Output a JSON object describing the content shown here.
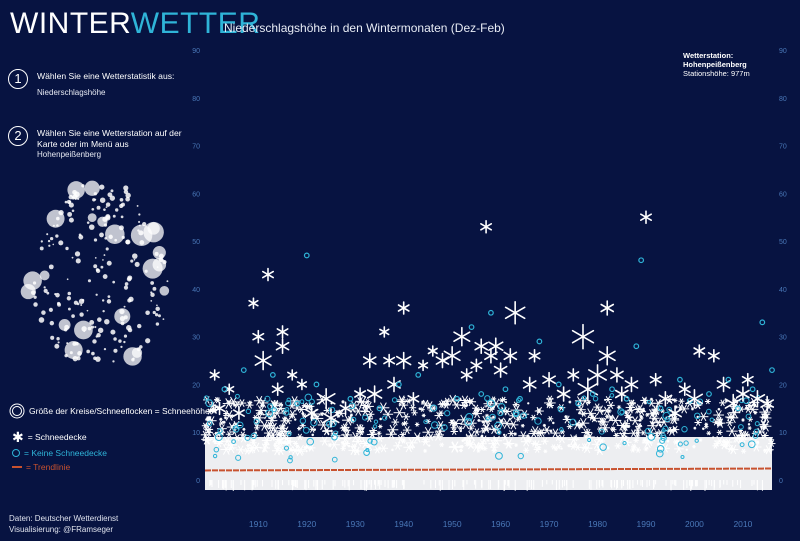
{
  "header": {
    "logo_part1": "WINTER",
    "logo_part2": "WETTER",
    "subtitle": "Niederschlagshöhe in den Wintermonaten (Dez-Feb)"
  },
  "step1": {
    "num": "1",
    "text": "Wählen Sie eine Wetterstatistik aus:",
    "value": "Niederschlagshöhe"
  },
  "step2": {
    "num": "2",
    "text": "Wählen Sie eine Wetterstation auf der Karte oder im Menü aus",
    "value": "Hohenpeißenberg"
  },
  "station": {
    "heading": "Wetterstation:",
    "name": "Hohenpeißenberg",
    "altitude": "Stationshöhe: 977m"
  },
  "legend": {
    "size": "Größe der Kreise/Schneeflocken = Schneehöhe",
    "snow": "= Schneedecke",
    "no_snow": "= Keine Schneedecke",
    "trend": "= Trendlinie"
  },
  "credits": {
    "line1": "Daten: Deutscher Wetterdienst",
    "line2": "Visualisierung: @FRamseger"
  },
  "colors": {
    "background": "#071341",
    "accent": "#2fb4d8",
    "snow": "#ffffff",
    "trend": "#c8522f",
    "axis": "#4a78b8"
  },
  "chart_data": {
    "type": "scatter",
    "title": "Niederschlagshöhe in den Wintermonaten (Dez-Feb)",
    "xlim": [
      1899,
      2016
    ],
    "ylim": [
      0,
      90
    ],
    "x_ticks": [
      1910,
      1920,
      1930,
      1940,
      1950,
      1960,
      1970,
      1980,
      1990,
      2000,
      2010
    ],
    "y_ticks": [
      0,
      10,
      20,
      30,
      40,
      50,
      60,
      70,
      80,
      90
    ],
    "trend_line": {
      "x": [
        1899,
        2016
      ],
      "y": [
        2.0,
        2.4
      ]
    },
    "series": [
      {
        "marker": "snowflake",
        "points": [
          {
            "x": 1901,
            "y": 22,
            "s": 5
          },
          {
            "x": 1902,
            "y": 15,
            "s": 6
          },
          {
            "x": 1904,
            "y": 19,
            "s": 5
          },
          {
            "x": 1906,
            "y": 14,
            "s": 6
          },
          {
            "x": 1909,
            "y": 37,
            "s": 5
          },
          {
            "x": 1910,
            "y": 30,
            "s": 6
          },
          {
            "x": 1911,
            "y": 25,
            "s": 9
          },
          {
            "x": 1912,
            "y": 43,
            "s": 6
          },
          {
            "x": 1914,
            "y": 19,
            "s": 6
          },
          {
            "x": 1915,
            "y": 31,
            "s": 6
          },
          {
            "x": 1915,
            "y": 28,
            "s": 7
          },
          {
            "x": 1917,
            "y": 22,
            "s": 5
          },
          {
            "x": 1919,
            "y": 20,
            "s": 5
          },
          {
            "x": 1921,
            "y": 14,
            "s": 7
          },
          {
            "x": 1924,
            "y": 17,
            "s": 10
          },
          {
            "x": 1925,
            "y": 13,
            "s": 9
          },
          {
            "x": 1928,
            "y": 15,
            "s": 6
          },
          {
            "x": 1931,
            "y": 18,
            "s": 6
          },
          {
            "x": 1933,
            "y": 25,
            "s": 7
          },
          {
            "x": 1934,
            "y": 18,
            "s": 8
          },
          {
            "x": 1936,
            "y": 31,
            "s": 5
          },
          {
            "x": 1937,
            "y": 25,
            "s": 6
          },
          {
            "x": 1938,
            "y": 20,
            "s": 7
          },
          {
            "x": 1940,
            "y": 25,
            "s": 8
          },
          {
            "x": 1940,
            "y": 36,
            "s": 6
          },
          {
            "x": 1942,
            "y": 17,
            "s": 6
          },
          {
            "x": 1944,
            "y": 24,
            "s": 5
          },
          {
            "x": 1946,
            "y": 27,
            "s": 5
          },
          {
            "x": 1948,
            "y": 25,
            "s": 7
          },
          {
            "x": 1950,
            "y": 26,
            "s": 9
          },
          {
            "x": 1952,
            "y": 30,
            "s": 9
          },
          {
            "x": 1953,
            "y": 22,
            "s": 6
          },
          {
            "x": 1955,
            "y": 24,
            "s": 6
          },
          {
            "x": 1956,
            "y": 28,
            "s": 7
          },
          {
            "x": 1957,
            "y": 53,
            "s": 6
          },
          {
            "x": 1958,
            "y": 26,
            "s": 7
          },
          {
            "x": 1959,
            "y": 28,
            "s": 8
          },
          {
            "x": 1960,
            "y": 23,
            "s": 7
          },
          {
            "x": 1962,
            "y": 26,
            "s": 7
          },
          {
            "x": 1963,
            "y": 35,
            "s": 11
          },
          {
            "x": 1966,
            "y": 20,
            "s": 7
          },
          {
            "x": 1967,
            "y": 26,
            "s": 6
          },
          {
            "x": 1970,
            "y": 21,
            "s": 7
          },
          {
            "x": 1973,
            "y": 18,
            "s": 7
          },
          {
            "x": 1975,
            "y": 22,
            "s": 6
          },
          {
            "x": 1977,
            "y": 30,
            "s": 12
          },
          {
            "x": 1978,
            "y": 19,
            "s": 11
          },
          {
            "x": 1980,
            "y": 22,
            "s": 10
          },
          {
            "x": 1982,
            "y": 36,
            "s": 7
          },
          {
            "x": 1982,
            "y": 26,
            "s": 9
          },
          {
            "x": 1984,
            "y": 22,
            "s": 7
          },
          {
            "x": 1985,
            "y": 18,
            "s": 7
          },
          {
            "x": 1987,
            "y": 20,
            "s": 7
          },
          {
            "x": 1990,
            "y": 55,
            "s": 6
          },
          {
            "x": 1992,
            "y": 21,
            "s": 6
          },
          {
            "x": 1994,
            "y": 17,
            "s": 7
          },
          {
            "x": 1996,
            "y": 14,
            "s": 7
          },
          {
            "x": 1998,
            "y": 19,
            "s": 6
          },
          {
            "x": 2000,
            "y": 17,
            "s": 9
          },
          {
            "x": 2001,
            "y": 27,
            "s": 6
          },
          {
            "x": 2004,
            "y": 26,
            "s": 6
          },
          {
            "x": 2006,
            "y": 20,
            "s": 7
          },
          {
            "x": 2008,
            "y": 16,
            "s": 9
          },
          {
            "x": 2010,
            "y": 18,
            "s": 7
          },
          {
            "x": 2011,
            "y": 21,
            "s": 6
          },
          {
            "x": 2013,
            "y": 17,
            "s": 8
          },
          {
            "x": 2015,
            "y": 16,
            "s": 7
          }
        ]
      },
      {
        "marker": "circle",
        "points": [
          {
            "x": 1903,
            "y": 19
          },
          {
            "x": 1907,
            "y": 23
          },
          {
            "x": 1913,
            "y": 22
          },
          {
            "x": 1918,
            "y": 16
          },
          {
            "x": 1920,
            "y": 47
          },
          {
            "x": 1922,
            "y": 20
          },
          {
            "x": 1929,
            "y": 17
          },
          {
            "x": 1935,
            "y": 15
          },
          {
            "x": 1939,
            "y": 20
          },
          {
            "x": 1943,
            "y": 22
          },
          {
            "x": 1951,
            "y": 17
          },
          {
            "x": 1954,
            "y": 32
          },
          {
            "x": 1956,
            "y": 18
          },
          {
            "x": 1958,
            "y": 35
          },
          {
            "x": 1961,
            "y": 19
          },
          {
            "x": 1964,
            "y": 17
          },
          {
            "x": 1968,
            "y": 29
          },
          {
            "x": 1972,
            "y": 20
          },
          {
            "x": 1976,
            "y": 16
          },
          {
            "x": 1979,
            "y": 18
          },
          {
            "x": 1983,
            "y": 19
          },
          {
            "x": 1986,
            "y": 17
          },
          {
            "x": 1989,
            "y": 46
          },
          {
            "x": 1988,
            "y": 28
          },
          {
            "x": 1993,
            "y": 15
          },
          {
            "x": 1997,
            "y": 21
          },
          {
            "x": 2003,
            "y": 18
          },
          {
            "x": 2007,
            "y": 21
          },
          {
            "x": 2009,
            "y": 15
          },
          {
            "x": 2012,
            "y": 19
          },
          {
            "x": 2014,
            "y": 33
          },
          {
            "x": 2016,
            "y": 23
          }
        ]
      }
    ]
  }
}
